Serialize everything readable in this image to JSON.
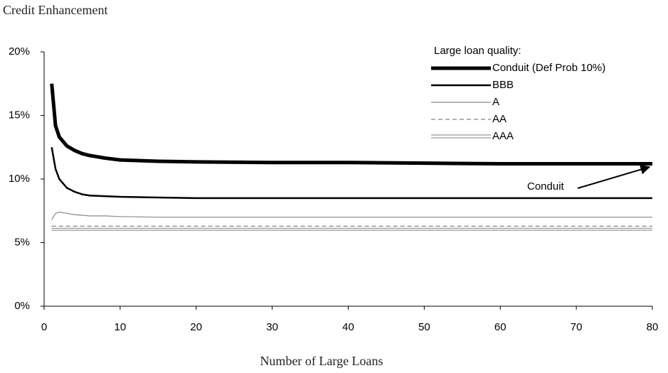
{
  "chart_data": {
    "type": "line",
    "title": "Credit Enhancement",
    "x_label": "Number of Large Loans",
    "legend_title": "Large loan quality:",
    "legend_position": "upper right",
    "annotation": "Conduit",
    "x": [
      1,
      1.5,
      2,
      3,
      4,
      5,
      6,
      8,
      10,
      15,
      20,
      30,
      40,
      50,
      60,
      70,
      80
    ],
    "series": [
      {
        "name": "Conduit (Def Prob 10%)",
        "color": "#000000",
        "line_width": 5,
        "dash": "solid",
        "values": [
          17.5,
          14.2,
          13.3,
          12.6,
          12.25,
          12.0,
          11.85,
          11.65,
          11.5,
          11.4,
          11.35,
          11.3,
          11.3,
          11.25,
          11.2,
          11.2,
          11.2
        ]
      },
      {
        "name": "BBB",
        "color": "#000000",
        "line_width": 2.5,
        "dash": "solid",
        "values": [
          12.5,
          10.8,
          10.0,
          9.3,
          9.0,
          8.8,
          8.7,
          8.65,
          8.6,
          8.55,
          8.5,
          8.5,
          8.5,
          8.5,
          8.5,
          8.5,
          8.5
        ]
      },
      {
        "name": "A",
        "color": "#888888",
        "line_width": 1.2,
        "dash": "solid",
        "values": [
          6.8,
          7.3,
          7.4,
          7.3,
          7.2,
          7.15,
          7.1,
          7.1,
          7.05,
          7.0,
          7.0,
          7.0,
          7.0,
          7.0,
          7.0,
          7.0,
          7.0
        ]
      },
      {
        "name": "AA",
        "color": "#666666",
        "line_width": 1,
        "dash": "dashed",
        "values": [
          6.3,
          6.3,
          6.3,
          6.3,
          6.3,
          6.3,
          6.3,
          6.3,
          6.3,
          6.3,
          6.3,
          6.3,
          6.3,
          6.3,
          6.3,
          6.3,
          6.3
        ]
      },
      {
        "name": "AAA",
        "color": "#999999",
        "line_width": 1,
        "dash": "double",
        "values": [
          6.05,
          6.05,
          6.05,
          6.05,
          6.05,
          6.05,
          6.05,
          6.05,
          6.05,
          6.05,
          6.05,
          6.05,
          6.05,
          6.05,
          6.05,
          6.05,
          6.05
        ]
      }
    ],
    "xlim": [
      0,
      80
    ],
    "xticks": [
      0,
      10,
      20,
      30,
      40,
      50,
      60,
      70,
      80
    ],
    "ylim": [
      0,
      20
    ],
    "yticks": [
      {
        "value": 0,
        "label": "0%"
      },
      {
        "value": 5,
        "label": "5%"
      },
      {
        "value": 10,
        "label": "10%"
      },
      {
        "value": 15,
        "label": "15%"
      },
      {
        "value": 20,
        "label": "20%"
      }
    ],
    "grid": false
  }
}
